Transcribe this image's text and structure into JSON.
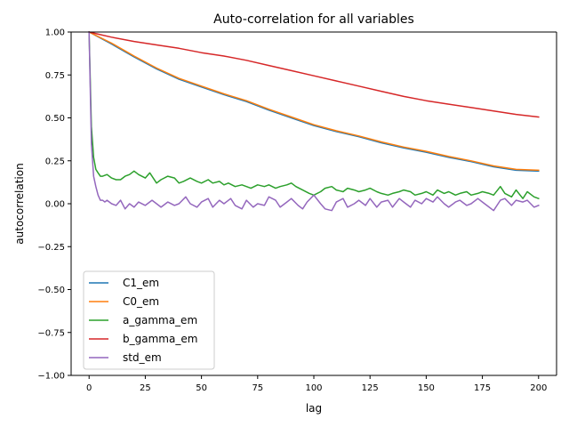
{
  "chart_data": {
    "type": "line",
    "title": "Auto-correlation for all variables",
    "xlabel": "lag",
    "ylabel": "autocorrelation",
    "xlim": [
      -8,
      208
    ],
    "ylim": [
      -1.0,
      1.0
    ],
    "xticks": [
      0,
      25,
      50,
      75,
      100,
      125,
      150,
      175,
      200
    ],
    "yticks": [
      -1.0,
      -0.75,
      -0.5,
      -0.25,
      0.0,
      0.25,
      0.5,
      0.75,
      1.0
    ],
    "ytick_labels": [
      "−1.00",
      "−0.75",
      "−0.50",
      "−0.25",
      "0.00",
      "0.25",
      "0.50",
      "0.75",
      "1.00"
    ],
    "grid": false,
    "legend_position": "lower-left",
    "series": [
      {
        "name": "C1_em",
        "color": "#1f77b4",
        "x": [
          0,
          10,
          20,
          30,
          40,
          50,
          60,
          70,
          80,
          90,
          100,
          110,
          120,
          130,
          140,
          150,
          160,
          170,
          180,
          190,
          200
        ],
        "y": [
          1.0,
          0.93,
          0.855,
          0.785,
          0.725,
          0.68,
          0.635,
          0.595,
          0.545,
          0.5,
          0.455,
          0.42,
          0.39,
          0.355,
          0.325,
          0.3,
          0.27,
          0.245,
          0.215,
          0.195,
          0.19
        ]
      },
      {
        "name": "C0_em",
        "color": "#ff7f0e",
        "x": [
          0,
          10,
          20,
          30,
          40,
          50,
          60,
          70,
          80,
          90,
          100,
          110,
          120,
          130,
          140,
          150,
          160,
          170,
          180,
          190,
          200
        ],
        "y": [
          1.0,
          0.935,
          0.86,
          0.79,
          0.73,
          0.685,
          0.64,
          0.6,
          0.55,
          0.505,
          0.46,
          0.425,
          0.395,
          0.36,
          0.33,
          0.305,
          0.275,
          0.25,
          0.22,
          0.2,
          0.195
        ]
      },
      {
        "name": "a_gamma_em",
        "color": "#2ca02c",
        "x": [
          0,
          1,
          2,
          3,
          4,
          5,
          6,
          8,
          10,
          12,
          14,
          16,
          18,
          20,
          22,
          25,
          27,
          30,
          32,
          35,
          38,
          40,
          42,
          45,
          48,
          50,
          53,
          55,
          58,
          60,
          62,
          65,
          68,
          70,
          72,
          75,
          78,
          80,
          83,
          85,
          88,
          90,
          92,
          95,
          98,
          100,
          103,
          105,
          108,
          110,
          113,
          115,
          118,
          120,
          123,
          125,
          128,
          130,
          133,
          135,
          138,
          140,
          143,
          145,
          148,
          150,
          153,
          155,
          158,
          160,
          163,
          165,
          168,
          170,
          173,
          175,
          178,
          180,
          183,
          185,
          188,
          190,
          193,
          195,
          198,
          200
        ],
        "y": [
          1.0,
          0.45,
          0.27,
          0.2,
          0.18,
          0.16,
          0.16,
          0.17,
          0.15,
          0.14,
          0.14,
          0.16,
          0.17,
          0.19,
          0.17,
          0.15,
          0.18,
          0.12,
          0.14,
          0.16,
          0.15,
          0.12,
          0.13,
          0.15,
          0.13,
          0.12,
          0.14,
          0.12,
          0.13,
          0.11,
          0.12,
          0.1,
          0.11,
          0.1,
          0.09,
          0.11,
          0.1,
          0.11,
          0.09,
          0.1,
          0.11,
          0.12,
          0.1,
          0.08,
          0.06,
          0.05,
          0.07,
          0.09,
          0.1,
          0.08,
          0.07,
          0.09,
          0.08,
          0.07,
          0.08,
          0.09,
          0.07,
          0.06,
          0.05,
          0.06,
          0.07,
          0.08,
          0.07,
          0.05,
          0.06,
          0.07,
          0.05,
          0.08,
          0.06,
          0.07,
          0.05,
          0.06,
          0.07,
          0.05,
          0.06,
          0.07,
          0.06,
          0.05,
          0.1,
          0.06,
          0.04,
          0.08,
          0.03,
          0.07,
          0.04,
          0.03
        ]
      },
      {
        "name": "b_gamma_em",
        "color": "#d62728",
        "x": [
          0,
          10,
          20,
          30,
          40,
          50,
          60,
          70,
          80,
          90,
          100,
          110,
          120,
          130,
          140,
          150,
          160,
          170,
          180,
          190,
          200
        ],
        "y": [
          1.0,
          0.97,
          0.945,
          0.925,
          0.905,
          0.88,
          0.86,
          0.835,
          0.805,
          0.775,
          0.745,
          0.715,
          0.685,
          0.655,
          0.625,
          0.6,
          0.58,
          0.56,
          0.54,
          0.52,
          0.505
        ]
      },
      {
        "name": "std_em",
        "color": "#9467bd",
        "x": [
          0,
          1,
          2,
          3,
          4,
          5,
          6,
          7,
          8,
          10,
          12,
          14,
          16,
          18,
          20,
          22,
          25,
          28,
          30,
          32,
          35,
          38,
          40,
          43,
          45,
          48,
          50,
          53,
          55,
          58,
          60,
          63,
          65,
          68,
          70,
          73,
          75,
          78,
          80,
          83,
          85,
          88,
          90,
          93,
          95,
          97,
          100,
          103,
          105,
          108,
          110,
          113,
          115,
          118,
          120,
          123,
          125,
          128,
          130,
          133,
          135,
          138,
          140,
          143,
          145,
          148,
          150,
          153,
          155,
          158,
          160,
          163,
          165,
          168,
          170,
          173,
          175,
          178,
          180,
          183,
          185,
          188,
          190,
          193,
          195,
          198,
          200
        ],
        "y": [
          1.0,
          0.35,
          0.16,
          0.1,
          0.05,
          0.02,
          0.02,
          0.01,
          0.02,
          0.0,
          -0.01,
          0.02,
          -0.03,
          0.0,
          -0.02,
          0.01,
          -0.01,
          0.02,
          0.0,
          -0.02,
          0.01,
          -0.01,
          0.0,
          0.04,
          0.0,
          -0.02,
          0.01,
          0.03,
          -0.02,
          0.02,
          0.0,
          0.03,
          -0.01,
          -0.03,
          0.02,
          -0.02,
          0.0,
          -0.01,
          0.04,
          0.02,
          -0.02,
          0.01,
          0.03,
          -0.01,
          -0.03,
          0.01,
          0.05,
          0.0,
          -0.03,
          -0.04,
          0.01,
          0.03,
          -0.02,
          0.0,
          0.02,
          -0.01,
          0.03,
          -0.02,
          0.01,
          0.02,
          -0.02,
          0.03,
          0.01,
          -0.02,
          0.02,
          0.0,
          0.03,
          0.01,
          0.04,
          0.0,
          -0.02,
          0.01,
          0.02,
          -0.01,
          0.0,
          0.03,
          0.01,
          -0.02,
          -0.04,
          0.02,
          0.03,
          -0.01,
          0.02,
          0.01,
          0.02,
          -0.02,
          -0.01
        ]
      }
    ]
  }
}
